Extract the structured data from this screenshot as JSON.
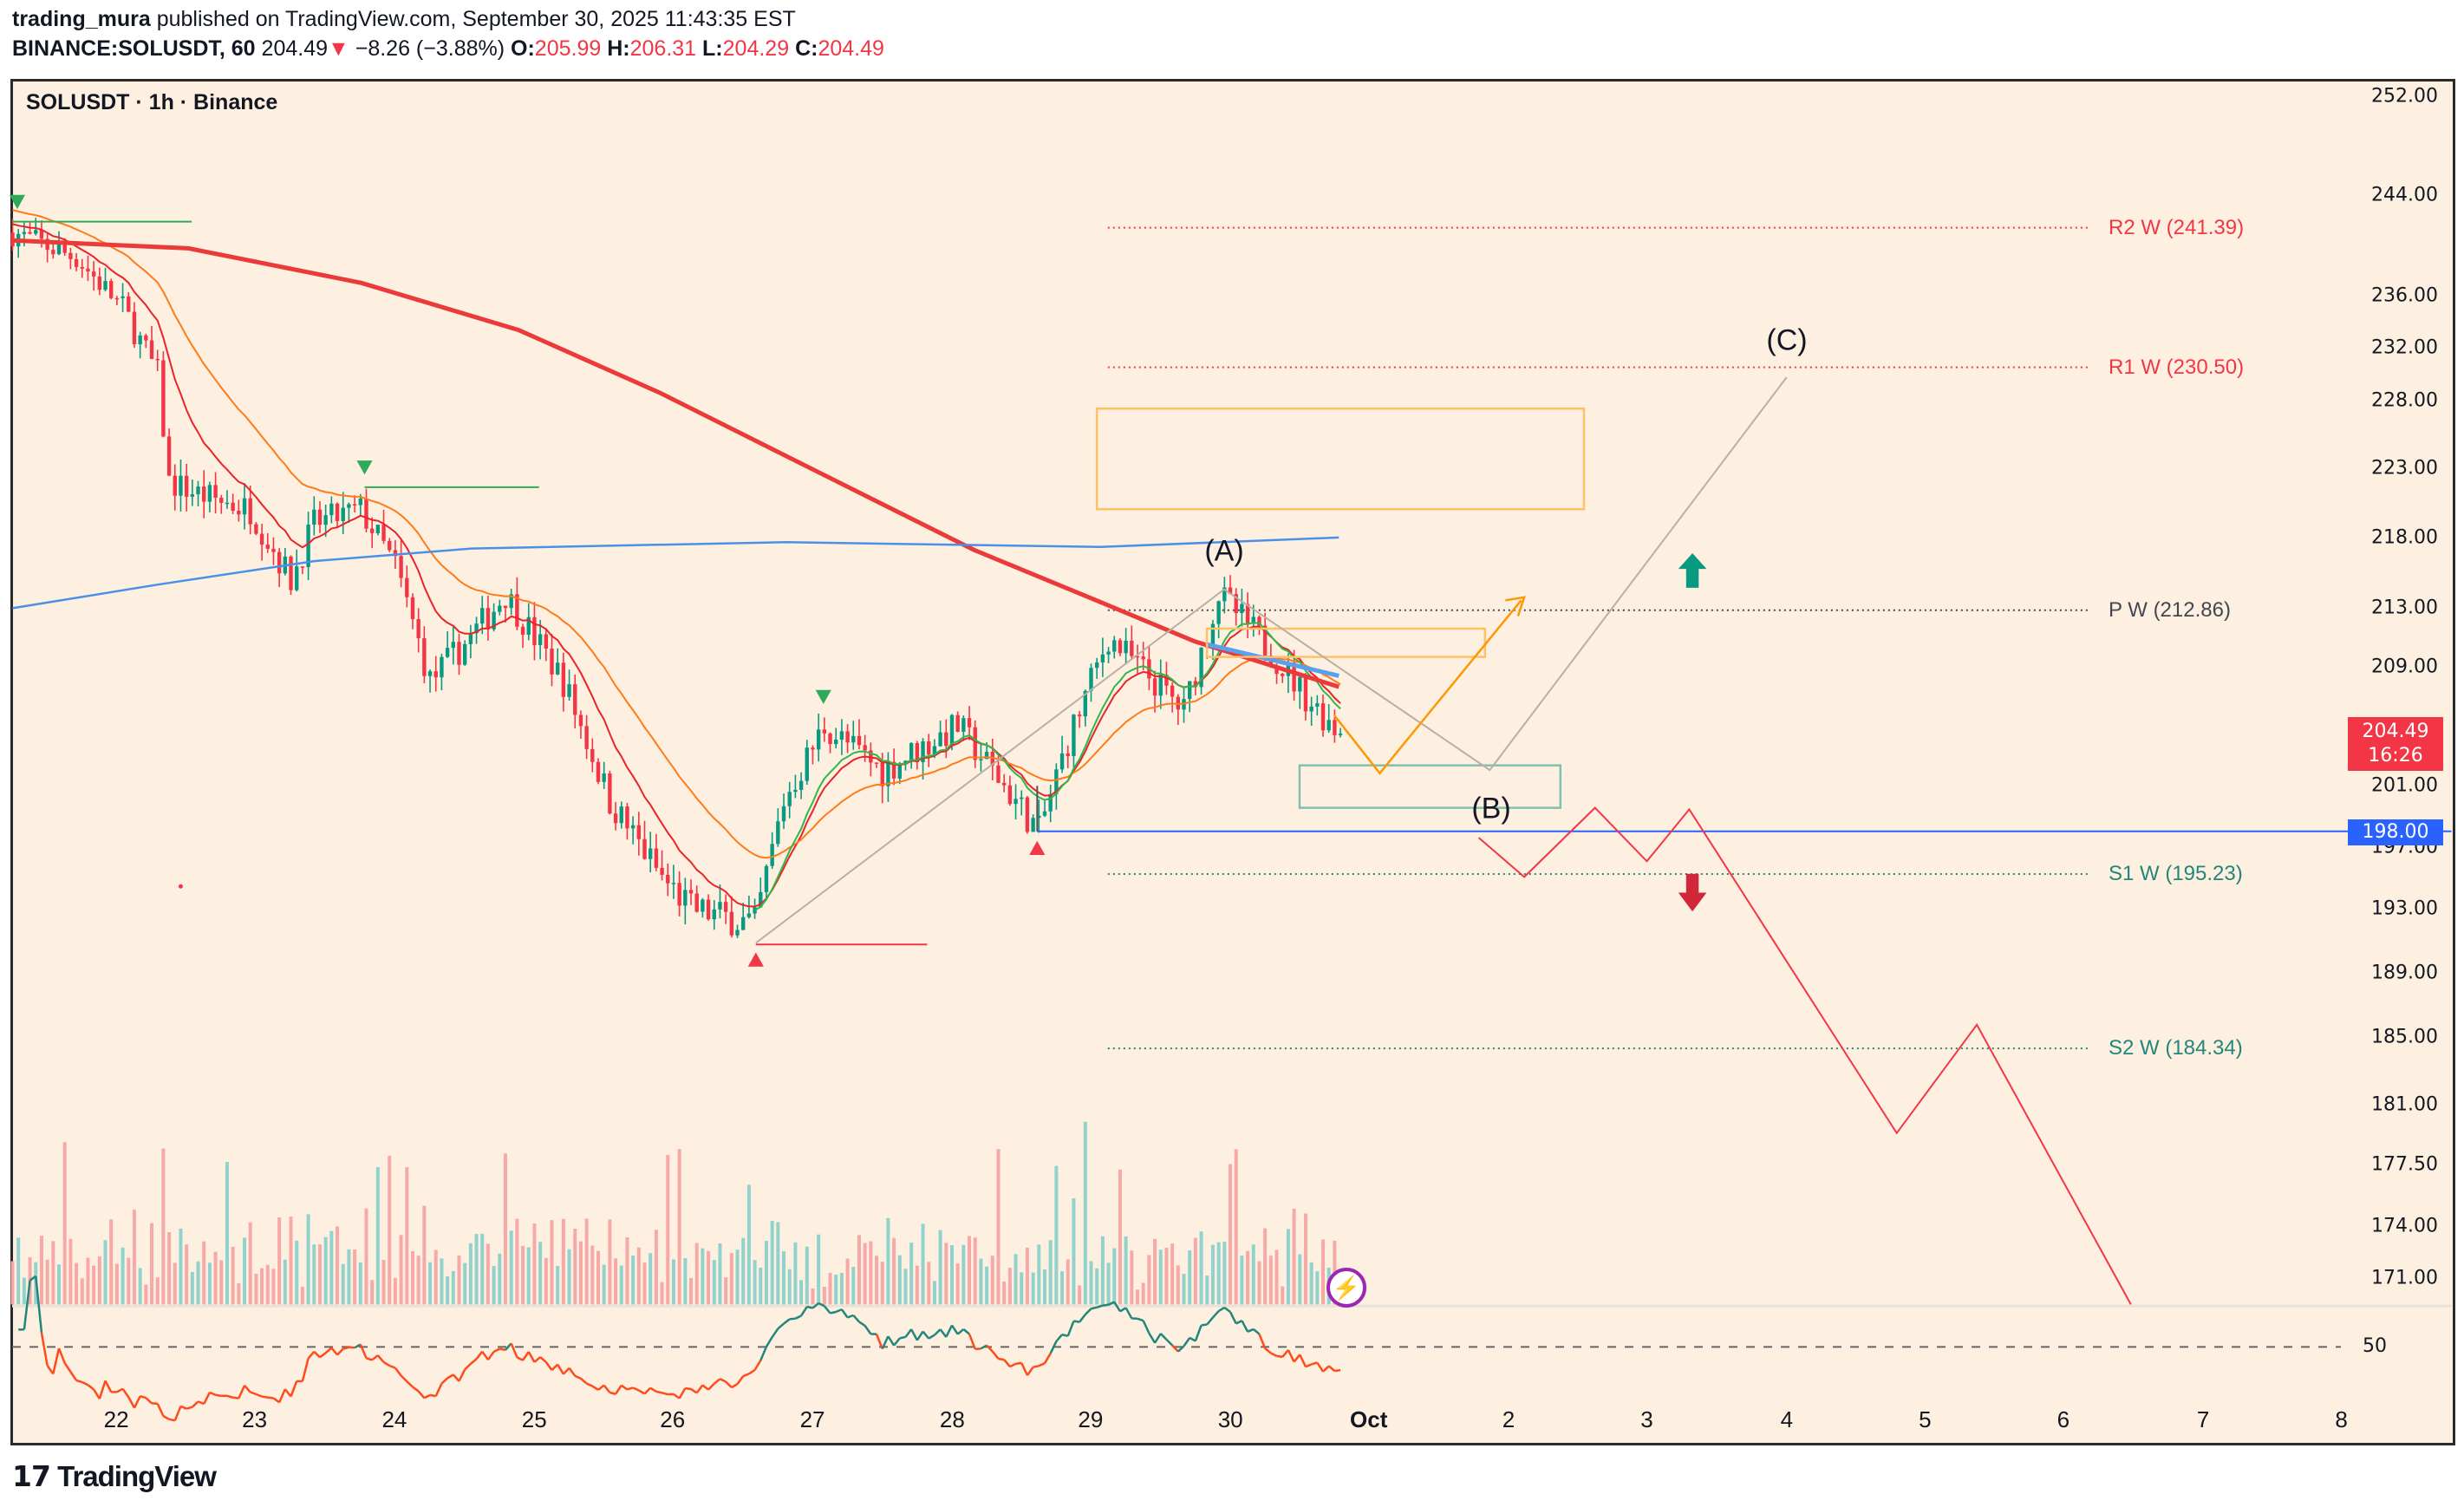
{
  "header": {
    "author": "trading_mura",
    "published": "published on TradingView.com, September 30, 2025 11:43:35 EST",
    "symbol_interval": "BINANCE:SOLUSDT, 60",
    "last": "204.49",
    "change": "−8.26 (−3.88%)",
    "o_label": "O:",
    "o": "205.99",
    "h_label": "H:",
    "h": "206.31",
    "l_label": "L:",
    "l": "204.29",
    "c_label": "C:",
    "c": "204.49"
  },
  "chart_title": "SOLUSDT · 1h · Binance",
  "price_axis": {
    "ticks": [
      "252.00",
      "244.00",
      "236.00",
      "232.00",
      "228.00",
      "223.00",
      "218.00",
      "213.00",
      "209.00",
      "201.00",
      "197.00",
      "193.00",
      "189.00",
      "185.00",
      "181.00",
      "177.50",
      "174.00",
      "171.00"
    ],
    "current_price": "204.49",
    "countdown": "16:26",
    "alert_price": "198.00",
    "rsi_level": "50"
  },
  "date_axis": [
    "22",
    "23",
    "24",
    "25",
    "26",
    "27",
    "28",
    "29",
    "30",
    "Oct",
    "2",
    "3",
    "4",
    "5",
    "6",
    "7",
    "8"
  ],
  "levels": [
    {
      "label": "R2 W (241.39)",
      "value": 241.39,
      "color": "#f23645"
    },
    {
      "label": "R1 W (230.50)",
      "value": 230.5,
      "color": "#f23645"
    },
    {
      "label": "P W (212.86)",
      "value": 212.86,
      "color": "#434651"
    },
    {
      "label": "S1 W (195.23)",
      "value": 195.23,
      "color": "#22867a"
    },
    {
      "label": "S2 W (184.34)",
      "value": 184.34,
      "color": "#22867a"
    }
  ],
  "waves": {
    "a": "(A)",
    "b": "(B)",
    "c": "(C)"
  },
  "colors": {
    "up": "#089981",
    "down": "#f23645",
    "background": "#fdf0e1",
    "alert_line": "#2962ff"
  },
  "chart_data": {
    "type": "candlestick",
    "symbol": "SOLUSDT",
    "interval": "1h",
    "price_path": [
      [
        0,
        241
      ],
      [
        11,
        239
      ],
      [
        19,
        235
      ],
      [
        25,
        230
      ],
      [
        27,
        222
      ],
      [
        33,
        221
      ],
      [
        41,
        220
      ],
      [
        48,
        215
      ],
      [
        52,
        219
      ],
      [
        60,
        220
      ],
      [
        66,
        216
      ],
      [
        72,
        208
      ],
      [
        79,
        211
      ],
      [
        85,
        214
      ],
      [
        95,
        208
      ],
      [
        103,
        200
      ],
      [
        112,
        195
      ],
      [
        117,
        193
      ],
      [
        128,
        192
      ],
      [
        133,
        200
      ],
      [
        140,
        205
      ],
      [
        150,
        202
      ],
      [
        163,
        205
      ],
      [
        171,
        201
      ],
      [
        177,
        198
      ],
      [
        182,
        204
      ],
      [
        189,
        211
      ],
      [
        202,
        206
      ],
      [
        208,
        214
      ],
      [
        215,
        211
      ],
      [
        223,
        207
      ],
      [
        229,
        204.49
      ]
    ]
  },
  "footer": {
    "brand": "TradingView"
  }
}
